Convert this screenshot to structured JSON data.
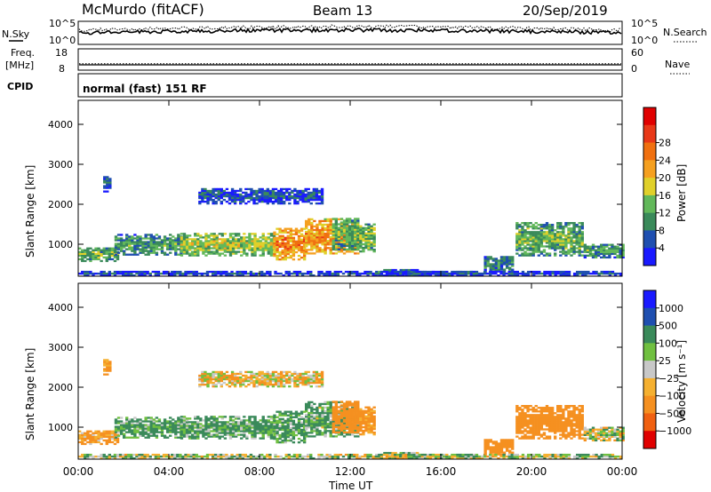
{
  "header": {
    "station": "McMurdo (fitACF)",
    "beam": "Beam 13",
    "date": "20/Sep/2019"
  },
  "noise_panel": {
    "left_label": "N.Sky",
    "right_label": "N.Search",
    "left_ticks": [
      "10^5",
      "10^0"
    ],
    "right_ticks": [
      "10^5",
      "10^0"
    ]
  },
  "freq_panel": {
    "left_label_1": "Freq.",
    "left_label_2": "[MHz]",
    "right_label": "Nave",
    "left_ticks": [
      "18",
      "8"
    ],
    "right_ticks": [
      "60",
      "0"
    ],
    "freq_value_mhz": 10.5,
    "nave_value": 18
  },
  "cpid": {
    "label": "CPID",
    "mode": "normal (fast) 151 RF"
  },
  "colors": {
    "power": [
      "#1a1aff",
      "#1f4fb0",
      "#3a8a5a",
      "#62b85a",
      "#e0d02a",
      "#f5a020",
      "#f07010",
      "#e83818",
      "#e00000"
    ],
    "velocity": [
      "#e00000",
      "#f06010",
      "#f59020",
      "#f5b030",
      "#c8c8c8",
      "#70c040",
      "#3a8a5a",
      "#1f4fb0",
      "#1a1aff"
    ]
  },
  "chart_data": [
    {
      "type": "heatmap",
      "quantity": "power",
      "ylabel": "Slant Range [km]",
      "ylim": [
        200,
        4600
      ],
      "y_ticks": [
        "1000",
        "2000",
        "3000",
        "4000"
      ],
      "x_ticks": [
        "00:00",
        "04:00",
        "08:00",
        "12:00",
        "16:00",
        "20:00",
        "00:00"
      ],
      "colorbar_label": "Power [dB]",
      "colorbar_ticks": [
        "4",
        "8",
        "12",
        "16",
        "20",
        "24",
        "28"
      ]
    },
    {
      "type": "heatmap",
      "quantity": "velocity",
      "ylabel": "Slant Range [km]",
      "ylim": [
        200,
        4600
      ],
      "y_ticks": [
        "1000",
        "2000",
        "3000",
        "4000"
      ],
      "x_ticks": [
        "00:00",
        "04:00",
        "08:00",
        "12:00",
        "16:00",
        "20:00",
        "00:00"
      ],
      "xlabel": "Time UT",
      "colorbar_label": "Velocity [m s⁻¹]",
      "colorbar_ticks": [
        "1000",
        "500",
        "100",
        "25",
        "−25",
        "−100",
        "−500",
        "−1000"
      ]
    }
  ],
  "echo_regions": [
    {
      "t0": 0.0,
      "t1": 1.7,
      "r0": 560,
      "r1": 900,
      "power": 14,
      "velocity": -150
    },
    {
      "t0": 1.6,
      "t1": 4.5,
      "r0": 720,
      "r1": 1220,
      "power": 12,
      "velocity": 150
    },
    {
      "t0": 4.5,
      "t1": 8.6,
      "r0": 700,
      "r1": 1280,
      "power": 17,
      "velocity": 140
    },
    {
      "t0": 8.6,
      "t1": 10.0,
      "r0": 600,
      "r1": 1380,
      "power": 25,
      "velocity": 160
    },
    {
      "t0": 10.0,
      "t1": 12.3,
      "r0": 750,
      "r1": 1620,
      "power": 24,
      "velocity": 120
    },
    {
      "t0": 11.2,
      "t1": 12.3,
      "r0": 850,
      "r1": 1650,
      "power": 14,
      "velocity": -300
    },
    {
      "t0": 12.4,
      "t1": 13.0,
      "r0": 800,
      "r1": 1500,
      "power": 15,
      "velocity": -200
    },
    {
      "t0": 13.1,
      "t1": 15.0,
      "r0": 200,
      "r1": 360,
      "power": 9,
      "velocity": 50
    },
    {
      "t0": 15.0,
      "t1": 17.9,
      "r0": 200,
      "r1": 320,
      "power": 8,
      "velocity": 40
    },
    {
      "t0": 17.9,
      "t1": 19.2,
      "r0": 300,
      "r1": 700,
      "power": 10,
      "velocity": -300
    },
    {
      "t0": 19.3,
      "t1": 22.3,
      "r0": 700,
      "r1": 1550,
      "power": 14,
      "velocity": -250
    },
    {
      "t0": 22.3,
      "t1": 24.0,
      "r0": 650,
      "r1": 1000,
      "power": 12,
      "velocity": 10
    },
    {
      "t0": 5.3,
      "t1": 10.8,
      "r0": 2000,
      "r1": 2400,
      "power": 7,
      "velocity": -50
    },
    {
      "t0": 1.1,
      "t1": 1.4,
      "r0": 2300,
      "r1": 2700,
      "power": 6,
      "velocity": -200
    },
    {
      "t0": 0.0,
      "t1": 24.0,
      "r0": 200,
      "r1": 300,
      "power": 6,
      "velocity": 30
    }
  ]
}
